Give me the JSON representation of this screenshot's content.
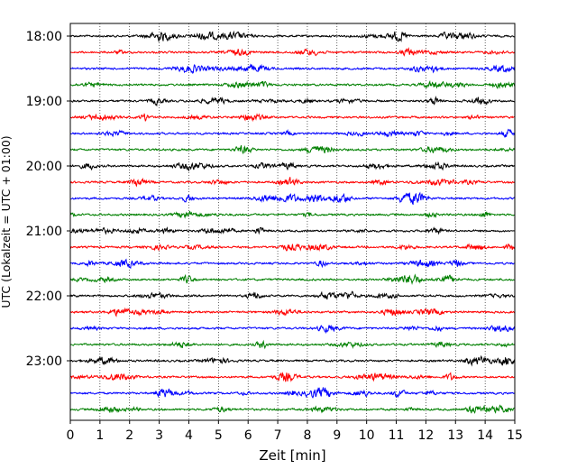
{
  "chart_data": {
    "type": "line",
    "title": "",
    "xlabel": "Zeit  [min]",
    "ylabel": "UTC (Lokalzeit = UTC + 01:00)",
    "xlim": [
      0,
      15
    ],
    "x_ticks": [
      "0",
      "1",
      "2",
      "3",
      "4",
      "5",
      "6",
      "7",
      "8",
      "9",
      "10",
      "11",
      "12",
      "13",
      "14",
      "15"
    ],
    "y_ticks": [
      "18:00",
      "19:00",
      "20:00",
      "21:00",
      "22:00",
      "23:00"
    ],
    "trace_count": 24,
    "trace_interval_min": 15,
    "start_time": "18:00",
    "trace_colors": [
      "#000000",
      "#ff0000",
      "#0000ff",
      "#008000"
    ],
    "grid_vertical": true,
    "grid_style": "dotted",
    "legend": "none"
  }
}
